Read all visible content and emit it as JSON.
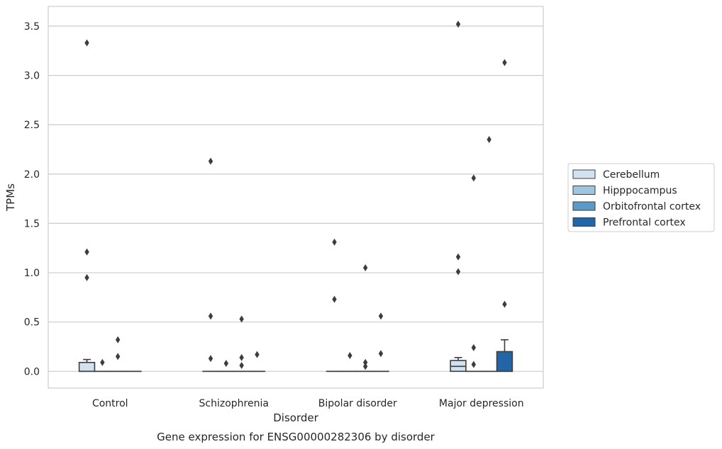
{
  "chart_data": {
    "type": "box",
    "caption": "Gene expression for ENSG00000282306 by disorder",
    "xlabel": "Disorder",
    "ylabel": "TPMs",
    "ylim": [
      -0.17,
      3.7
    ],
    "yticks": [
      "0.0",
      "0.5",
      "1.0",
      "1.5",
      "2.0",
      "2.5",
      "3.0",
      "3.5"
    ],
    "ytick_values": [
      0.0,
      0.5,
      1.0,
      1.5,
      2.0,
      2.5,
      3.0,
      3.5
    ],
    "grid": "horizontal",
    "legend_position": "right",
    "categories": [
      "Control",
      "Schizophrenia",
      "Bipolar disorder",
      "Major depression"
    ],
    "series": [
      {
        "name": "Cerebellum",
        "color": "#d3e2f1",
        "boxes": [
          {
            "q1": 0.0,
            "median": 0.0,
            "q3": 0.09,
            "whisker_low": 0.0,
            "whisker_high": 0.12,
            "outliers": [
              0.95,
              1.21,
              3.33
            ]
          },
          {
            "q1": 0.0,
            "median": 0.0,
            "q3": 0.0,
            "whisker_low": 0.0,
            "whisker_high": 0.0,
            "outliers": [
              0.13,
              0.56,
              2.13
            ]
          },
          {
            "q1": 0.0,
            "median": 0.0,
            "q3": 0.0,
            "whisker_low": 0.0,
            "whisker_high": 0.0,
            "outliers": [
              0.73,
              1.31
            ]
          },
          {
            "q1": 0.0,
            "median": 0.05,
            "q3": 0.11,
            "whisker_low": 0.0,
            "whisker_high": 0.14,
            "outliers": [
              1.01,
              1.16,
              3.52
            ]
          }
        ]
      },
      {
        "name": "Hipppocampus",
        "color": "#9ec6e0",
        "boxes": [
          {
            "q1": 0.0,
            "median": 0.0,
            "q3": 0.0,
            "whisker_low": 0.0,
            "whisker_high": 0.0,
            "outliers": [
              0.09
            ]
          },
          {
            "q1": 0.0,
            "median": 0.0,
            "q3": 0.0,
            "whisker_low": 0.0,
            "whisker_high": 0.0,
            "outliers": [
              0.08
            ]
          },
          {
            "q1": 0.0,
            "median": 0.0,
            "q3": 0.0,
            "whisker_low": 0.0,
            "whisker_high": 0.0,
            "outliers": [
              0.16
            ]
          },
          {
            "q1": 0.0,
            "median": 0.0,
            "q3": 0.0,
            "whisker_low": 0.0,
            "whisker_high": 0.0,
            "outliers": [
              0.07,
              0.24,
              1.96
            ]
          }
        ]
      },
      {
        "name": "Orbitofrontal cortex",
        "color": "#5a99c8",
        "boxes": [
          {
            "q1": 0.0,
            "median": 0.0,
            "q3": 0.0,
            "whisker_low": 0.0,
            "whisker_high": 0.0,
            "outliers": [
              0.15,
              0.32
            ]
          },
          {
            "q1": 0.0,
            "median": 0.0,
            "q3": 0.0,
            "whisker_low": 0.0,
            "whisker_high": 0.0,
            "outliers": [
              0.06,
              0.14,
              0.53
            ]
          },
          {
            "q1": 0.0,
            "median": 0.0,
            "q3": 0.0,
            "whisker_low": 0.0,
            "whisker_high": 0.0,
            "outliers": [
              0.05,
              0.09,
              1.05
            ]
          },
          {
            "q1": 0.0,
            "median": 0.0,
            "q3": 0.0,
            "whisker_low": 0.0,
            "whisker_high": 0.0,
            "outliers": [
              2.35
            ]
          }
        ]
      },
      {
        "name": "Prefrontal cortex",
        "color": "#2366a8",
        "boxes": [
          {
            "q1": 0.0,
            "median": 0.0,
            "q3": 0.0,
            "whisker_low": 0.0,
            "whisker_high": 0.0,
            "outliers": []
          },
          {
            "q1": 0.0,
            "median": 0.0,
            "q3": 0.0,
            "whisker_low": 0.0,
            "whisker_high": 0.0,
            "outliers": [
              0.17
            ]
          },
          {
            "q1": 0.0,
            "median": 0.0,
            "q3": 0.0,
            "whisker_low": 0.0,
            "whisker_high": 0.0,
            "outliers": [
              0.18,
              0.56
            ]
          },
          {
            "q1": 0.0,
            "median": 0.0,
            "q3": 0.2,
            "whisker_low": 0.0,
            "whisker_high": 0.32,
            "outliers": [
              0.68,
              3.13
            ]
          }
        ]
      }
    ]
  }
}
